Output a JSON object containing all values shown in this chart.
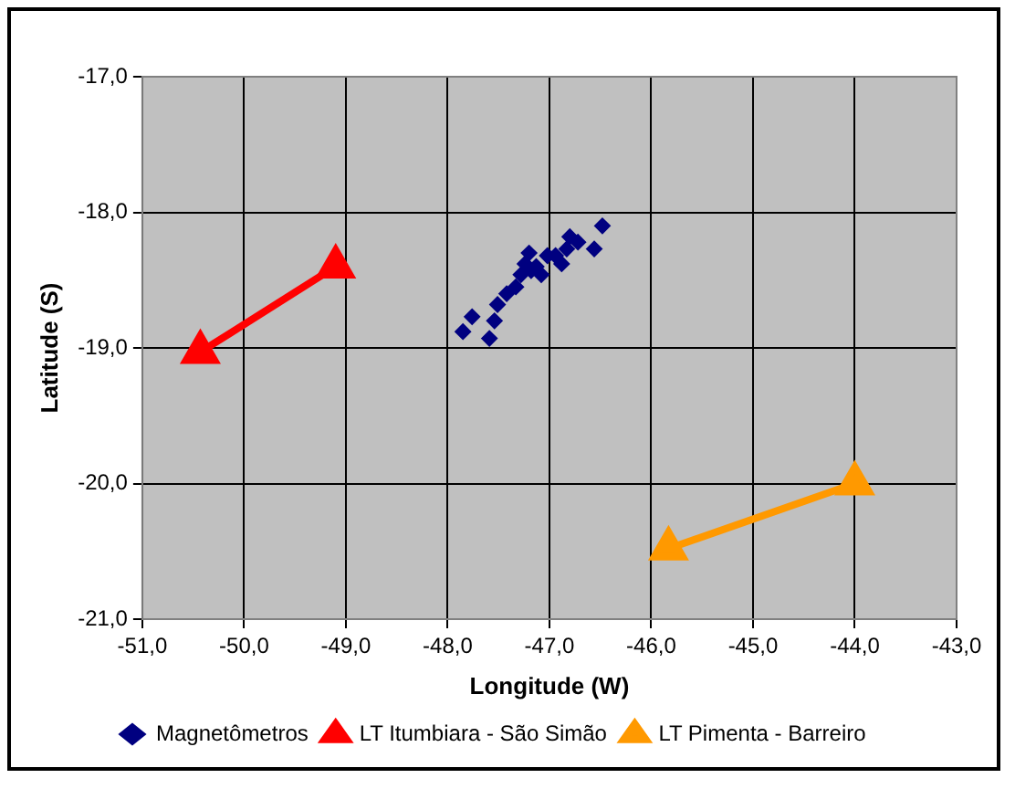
{
  "chart_data": {
    "type": "scatter",
    "xlabel": "Longitude (W)",
    "ylabel": "Latitude (S)",
    "xlim": [
      -51,
      -43
    ],
    "ylim": [
      -21,
      -17
    ],
    "xticks": [
      {
        "value": -51,
        "label": "-51,0"
      },
      {
        "value": -50,
        "label": "-50,0"
      },
      {
        "value": -49,
        "label": "-49,0"
      },
      {
        "value": -48,
        "label": "-48,0"
      },
      {
        "value": -47,
        "label": "-47,0"
      },
      {
        "value": -46,
        "label": "-46,0"
      },
      {
        "value": -45,
        "label": "-45,0"
      },
      {
        "value": -44,
        "label": "-44,0"
      },
      {
        "value": -43,
        "label": "-43,0"
      }
    ],
    "yticks": [
      {
        "value": -21,
        "label": "-21,0"
      },
      {
        "value": -20,
        "label": "-20,0"
      },
      {
        "value": -19,
        "label": "-19,0"
      },
      {
        "value": -18,
        "label": "-18,0"
      },
      {
        "value": -17,
        "label": "-17,0"
      }
    ],
    "grid": true,
    "legend": "bottom",
    "series": [
      {
        "name": "Magnetômetros",
        "type": "scatter",
        "marker": "diamond",
        "color": "#000080",
        "x": [
          -47.85,
          -47.76,
          -47.59,
          -47.54,
          -47.51,
          -47.42,
          -47.33,
          -47.28,
          -47.24,
          -47.2,
          -47.18,
          -47.13,
          -47.08,
          -47.02,
          -46.94,
          -46.88,
          -46.83,
          -46.8,
          -46.72,
          -46.56,
          -46.48
        ],
        "values": [
          -18.88,
          -18.77,
          -18.93,
          -18.8,
          -18.68,
          -18.6,
          -18.55,
          -18.46,
          -18.38,
          -18.3,
          -18.43,
          -18.4,
          -18.46,
          -18.32,
          -18.32,
          -18.38,
          -18.27,
          -18.18,
          -18.22,
          -18.27,
          -18.1
        ]
      },
      {
        "name": "LT Itumbiara - São Simão",
        "type": "line",
        "marker": "triangle",
        "color": "#ff0000",
        "x": [
          -50.43,
          -49.1
        ],
        "values": [
          -19.03,
          -18.4
        ]
      },
      {
        "name": "LT Pimenta - Barreiro",
        "type": "line",
        "marker": "triangle",
        "color": "#ff9900",
        "x": [
          -45.83,
          -44.0
        ],
        "values": [
          -20.48,
          -20.0
        ]
      }
    ]
  }
}
